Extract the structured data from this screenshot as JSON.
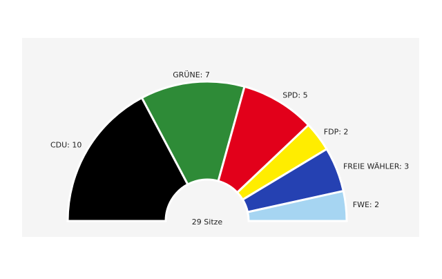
{
  "chart_data": {
    "type": "parliament",
    "categories": [
      "CDU",
      "GRÜNE",
      "SPD",
      "FDP",
      "FREIE WÄHLER",
      "FWE"
    ],
    "values": [
      10,
      7,
      5,
      2,
      3,
      2
    ],
    "value_labels": [
      "CDU: 10",
      "GRÜNE: 7",
      "SPD: 5",
      "FDP: 2",
      "FREIE WÄHLER: 3",
      "FWE: 2"
    ],
    "colors": [
      "#000000",
      "#2e8b37",
      "#e2001a",
      "#ffed00",
      "#2541b2",
      "#a6d5f2"
    ],
    "center_label": "29 Sitze"
  }
}
